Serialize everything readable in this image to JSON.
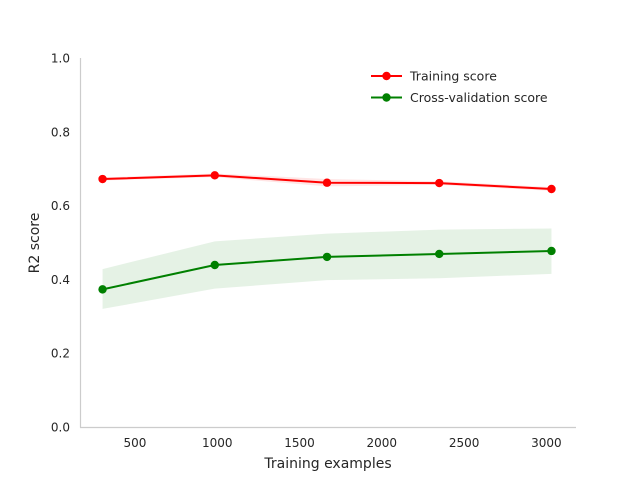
{
  "chart_data": {
    "type": "line",
    "title": "",
    "xlabel": "Training examples",
    "ylabel": "R2 score",
    "xlim": [
      166,
      3180
    ],
    "ylim": [
      0.0,
      1.0
    ],
    "x_ticks": [
      500,
      1000,
      1500,
      2000,
      2500,
      3000
    ],
    "y_ticks": [
      0.0,
      0.2,
      0.4,
      0.6,
      0.8,
      1.0
    ],
    "grid": false,
    "legend_position": "top-right",
    "x": [
      303,
      985,
      1667,
      2349,
      3031
    ],
    "series": [
      {
        "name": "Training score",
        "color": "#ff0000",
        "band_color": "#ff0000",
        "values": [
          0.672,
          0.682,
          0.662,
          0.661,
          0.645
        ],
        "band_lower": [
          0.668,
          0.677,
          0.652,
          0.656,
          0.64
        ],
        "band_upper": [
          0.676,
          0.687,
          0.672,
          0.666,
          0.65
        ]
      },
      {
        "name": "Cross-validation score",
        "color": "#008000",
        "band_color": "#008000",
        "values": [
          0.373,
          0.439,
          0.461,
          0.469,
          0.477
        ],
        "band_lower": [
          0.32,
          0.375,
          0.398,
          0.403,
          0.415
        ],
        "band_upper": [
          0.428,
          0.503,
          0.524,
          0.535,
          0.538
        ]
      }
    ]
  }
}
